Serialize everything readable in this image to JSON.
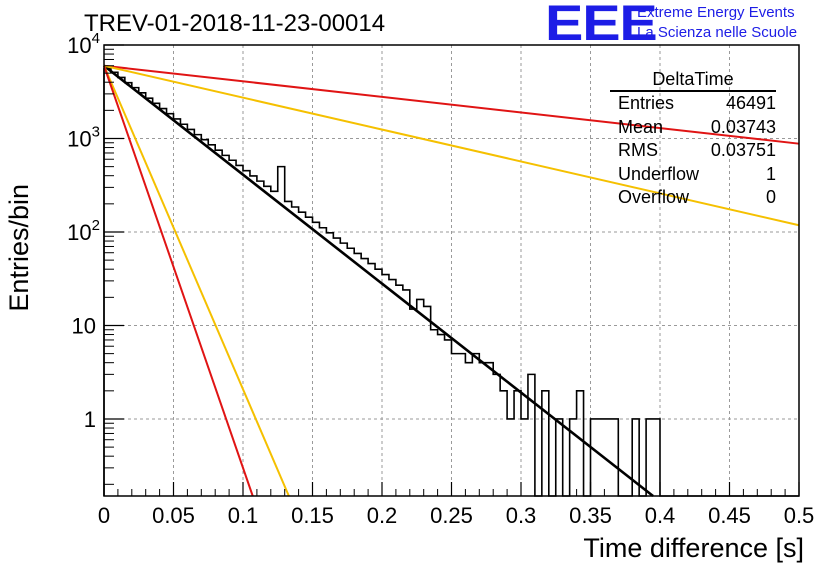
{
  "title": "TREV-01-2018-11-23-00014",
  "logo": {
    "mark": "EEE",
    "line1": "Extreme Energy Events",
    "line2": "La Scienza nelle Scuole"
  },
  "stats_box": {
    "title": "DeltaTime",
    "rows": [
      {
        "label": "Entries",
        "value": "46491"
      },
      {
        "label": "Mean",
        "value": "0.03743"
      },
      {
        "label": "RMS",
        "value": "0.03751"
      },
      {
        "label": "Underflow",
        "value": "1"
      },
      {
        "label": "Overflow",
        "value": "0"
      }
    ]
  },
  "chart_data": {
    "type": "bar",
    "histogram_style": "step",
    "xlabel": "Time difference [s]",
    "ylabel": "Entries/bin",
    "xlim": [
      0,
      0.5
    ],
    "ylim": [
      0.15,
      10000
    ],
    "yscale": "log",
    "grid": true,
    "x_ticks": [
      "0",
      "0.05",
      "0.1",
      "0.15",
      "0.2",
      "0.25",
      "0.3",
      "0.35",
      "0.4",
      "0.45",
      "0.5"
    ],
    "y_ticks": [
      {
        "value": 1,
        "label": "1"
      },
      {
        "value": 10,
        "label": "10"
      },
      {
        "value": 100,
        "label": "10^2"
      },
      {
        "value": 1000,
        "label": "10^3"
      },
      {
        "value": 10000,
        "label": "10^4"
      }
    ],
    "bin_width": 0.005,
    "histogram_values": [
      5600,
      5100,
      4500,
      3950,
      3500,
      3080,
      2700,
      2380,
      2090,
      1840,
      1620,
      1420,
      1250,
      1100,
      970,
      855,
      750,
      660,
      585,
      515,
      452,
      398,
      350,
      308,
      272,
      500,
      212,
      185,
      163,
      144,
      127,
      111,
      98,
      86,
      76,
      67,
      59,
      52,
      46,
      40,
      35,
      31,
      27,
      24,
      15,
      19,
      16,
      9,
      8,
      7,
      5,
      5,
      4,
      5,
      4,
      4,
      3,
      2,
      1,
      2,
      1,
      3,
      0,
      2,
      0,
      1,
      0,
      1,
      2,
      0,
      1,
      1,
      1,
      1,
      0,
      0,
      1,
      0,
      1,
      1,
      0,
      0,
      0,
      0,
      0,
      0,
      0,
      0,
      0,
      0,
      0,
      0,
      0,
      0,
      0,
      0,
      0,
      0,
      0,
      0
    ],
    "series": [
      {
        "kind": "fit",
        "color": "#000000",
        "x": [
          0,
          0.395
        ],
        "y": [
          6000,
          0.15
        ]
      },
      {
        "kind": "curve",
        "color": "#e01414",
        "x": [
          0,
          0.5
        ],
        "y": [
          6000,
          880
        ]
      },
      {
        "kind": "curve",
        "color": "#f5c000",
        "x": [
          0,
          0.5
        ],
        "y": [
          6000,
          118
        ]
      },
      {
        "kind": "curve",
        "color": "#f5c000",
        "x": [
          0,
          0.133
        ],
        "y": [
          6000,
          0.15
        ]
      },
      {
        "kind": "curve",
        "color": "#e01414",
        "x": [
          0,
          0.107
        ],
        "y": [
          6000,
          0.15
        ]
      }
    ]
  }
}
